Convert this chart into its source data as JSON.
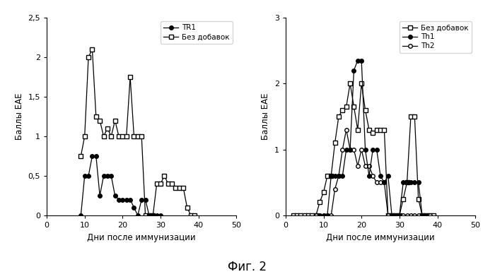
{
  "fig_title": "Фиг. 2",
  "left_plot": {
    "xlabel": "Дни после иммунизации",
    "ylabel": "Баллы ЕАЕ",
    "ylim": [
      0,
      2.5
    ],
    "yticks": [
      0,
      0.5,
      1.0,
      1.5,
      2.0,
      2.5
    ],
    "ytick_labels": [
      "0",
      "0,5",
      "1",
      "1,5",
      "2",
      "2,5"
    ],
    "xlim": [
      0,
      50
    ],
    "xticks": [
      0,
      10,
      20,
      30,
      40,
      50
    ],
    "TR1_x": [
      9,
      10,
      11,
      12,
      13,
      14,
      15,
      16,
      17,
      18,
      19,
      20,
      21,
      22,
      23,
      24,
      25,
      26,
      27,
      28,
      29,
      30
    ],
    "TR1_y": [
      0,
      0.5,
      0.5,
      0.75,
      0.75,
      0.25,
      0.5,
      0.5,
      0.5,
      0.25,
      0.2,
      0.2,
      0.2,
      0.2,
      0.1,
      0,
      0.2,
      0.2,
      0,
      0,
      0,
      0
    ],
    "bez_x": [
      9,
      10,
      11,
      12,
      13,
      14,
      15,
      16,
      17,
      18,
      19,
      20,
      21,
      22,
      23,
      24,
      25,
      26,
      27,
      28,
      29,
      30,
      31,
      32,
      33,
      34,
      35,
      36,
      37,
      38,
      39
    ],
    "bez_y": [
      0.75,
      1.0,
      2.0,
      2.1,
      1.25,
      1.2,
      1.0,
      1.1,
      1.0,
      1.2,
      1.0,
      1.0,
      1.0,
      1.75,
      1.0,
      1.0,
      1.0,
      0,
      0,
      0,
      0.4,
      0.4,
      0.5,
      0.4,
      0.4,
      0.35,
      0.35,
      0.35,
      0.1,
      0,
      0
    ]
  },
  "right_plot": {
    "xlabel": "Дни после иммунизации",
    "ylabel": "Баллы ЕАЕ",
    "ylim": [
      0,
      3.0
    ],
    "yticks": [
      0,
      1.0,
      2.0,
      3.0
    ],
    "ytick_labels": [
      "0",
      "1",
      "2",
      "3"
    ],
    "xlim": [
      0,
      50
    ],
    "xticks": [
      0,
      10,
      20,
      30,
      40,
      50
    ],
    "bez_x": [
      2,
      3,
      4,
      5,
      6,
      7,
      8,
      9,
      10,
      11,
      12,
      13,
      14,
      15,
      16,
      17,
      18,
      19,
      20,
      21,
      22,
      23,
      24,
      25,
      26,
      27,
      28,
      29,
      30,
      31,
      32,
      33,
      34,
      35,
      36,
      37,
      38,
      39
    ],
    "bez_y": [
      0,
      0,
      0,
      0,
      0,
      0,
      0,
      0.2,
      0.35,
      0.6,
      0.6,
      1.1,
      1.5,
      1.6,
      1.65,
      2.0,
      1.65,
      1.3,
      2.0,
      1.6,
      1.3,
      1.25,
      1.3,
      1.3,
      1.3,
      0,
      0,
      0,
      0,
      0.25,
      0.5,
      1.5,
      1.5,
      0.25,
      0,
      0,
      0,
      0
    ],
    "th1_x": [
      9,
      10,
      11,
      12,
      13,
      14,
      15,
      16,
      17,
      18,
      19,
      20,
      21,
      22,
      23,
      24,
      25,
      26,
      27,
      28,
      29,
      30,
      31,
      32,
      33,
      34,
      35,
      36,
      37
    ],
    "th1_y": [
      0,
      0,
      0,
      0.6,
      0.6,
      0.6,
      0.6,
      1.0,
      1.0,
      2.2,
      2.35,
      2.35,
      1.0,
      0.6,
      1.0,
      1.0,
      0.6,
      0.5,
      0.6,
      0,
      0,
      0,
      0.5,
      0.5,
      0.5,
      0.5,
      0.5,
      0,
      0
    ],
    "th2_x": [
      8,
      9,
      10,
      11,
      12,
      13,
      14,
      15,
      16,
      17,
      18,
      19,
      20,
      21,
      22,
      23,
      24,
      25,
      26,
      27,
      28,
      29,
      30,
      31,
      32,
      33,
      34,
      35,
      36,
      37,
      38
    ],
    "th2_y": [
      0,
      0,
      0,
      0,
      0,
      0.4,
      0.6,
      1.0,
      1.3,
      1.0,
      1.0,
      0.75,
      1.0,
      0.75,
      0.75,
      0.6,
      0.5,
      0.5,
      0.5,
      0,
      0,
      0,
      0,
      0,
      0,
      0,
      0,
      0,
      0,
      0,
      0
    ]
  }
}
